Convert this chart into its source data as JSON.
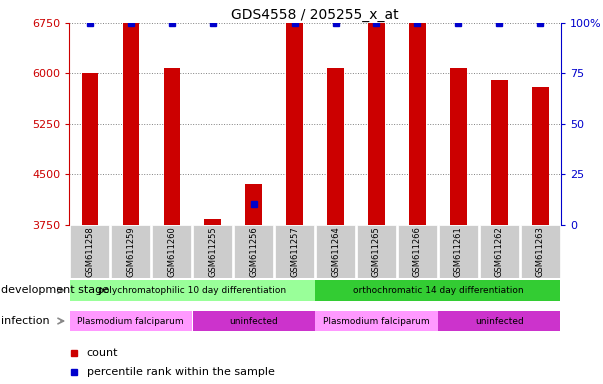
{
  "title": "GDS4558 / 205255_x_at",
  "samples": [
    "GSM611258",
    "GSM611259",
    "GSM611260",
    "GSM611255",
    "GSM611256",
    "GSM611257",
    "GSM611264",
    "GSM611265",
    "GSM611266",
    "GSM611261",
    "GSM611262",
    "GSM611263"
  ],
  "counts": [
    6000,
    6750,
    6080,
    3830,
    4350,
    6750,
    6080,
    6750,
    6750,
    6080,
    5900,
    5800
  ],
  "percentile_ranks": [
    100,
    100,
    100,
    100,
    10,
    100,
    100,
    100,
    100,
    100,
    100,
    100
  ],
  "bar_color": "#cc0000",
  "percentile_color": "#0000cc",
  "ylim_left": [
    3750,
    6750
  ],
  "ylim_right": [
    0,
    100
  ],
  "yticks_left": [
    3750,
    4500,
    5250,
    6000,
    6750
  ],
  "yticks_right": [
    0,
    25,
    50,
    75,
    100
  ],
  "tick_color_left": "#cc0000",
  "tick_color_right": "#0000cc",
  "development_stage_label": "development stage",
  "infection_label": "infection",
  "dev_stage_groups": [
    {
      "label": "polychromatophilic 10 day differentiation",
      "start": 0,
      "end": 5,
      "color": "#99ff99"
    },
    {
      "label": "orthochromatic 14 day differentiation",
      "start": 6,
      "end": 11,
      "color": "#33cc33"
    }
  ],
  "infection_groups": [
    {
      "label": "Plasmodium falciparum",
      "start": 0,
      "end": 2,
      "color": "#ff99ff"
    },
    {
      "label": "uninfected",
      "start": 3,
      "end": 5,
      "color": "#cc33cc"
    },
    {
      "label": "Plasmodium falciparum",
      "start": 6,
      "end": 8,
      "color": "#ff99ff"
    },
    {
      "label": "uninfected",
      "start": 9,
      "end": 11,
      "color": "#cc33cc"
    }
  ],
  "xtick_bg_color": "#cccccc",
  "legend_count_label": "count",
  "legend_percentile_label": "percentile rank within the sample",
  "bar_width": 0.4,
  "marker_size": 5,
  "label_fontsize": 8,
  "tick_fontsize": 8,
  "annotation_fontsize": 6.5,
  "sample_fontsize": 6
}
